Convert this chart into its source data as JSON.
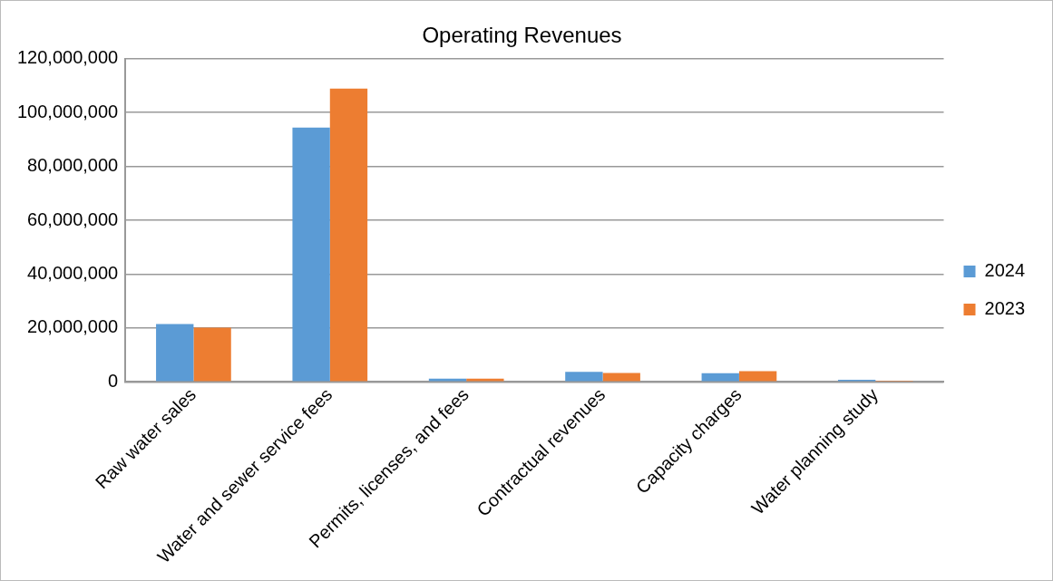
{
  "chart_data": {
    "type": "bar",
    "title": "Operating Revenues",
    "categories": [
      "Raw water sales",
      "Water and sewer service fees",
      "Permits, licenses, and fees",
      "Contractual revenues",
      "Capacity charges",
      "Water planning study"
    ],
    "series": [
      {
        "name": "2024",
        "color": "#5b9bd5",
        "values": [
          21500000,
          94400000,
          1200000,
          3700000,
          3200000,
          800000
        ]
      },
      {
        "name": "2023",
        "color": "#ed7d31",
        "values": [
          20100000,
          108900000,
          1200000,
          3300000,
          4000000,
          400000
        ]
      }
    ],
    "ylim": [
      0,
      120000000
    ],
    "yticks": [
      0,
      {
        "value": 20000000,
        "label": "20,000,000"
      },
      {
        "value": 40000000,
        "label": "40,000,000"
      },
      {
        "value": 60000000,
        "label": "60,000,000"
      },
      {
        "value": 80000000,
        "label": "80,000,000"
      },
      {
        "value": 100000000,
        "label": "100,000,000"
      },
      {
        "value": 120000000,
        "label": "120,000,000"
      }
    ],
    "grid": "y",
    "legend": "right"
  }
}
